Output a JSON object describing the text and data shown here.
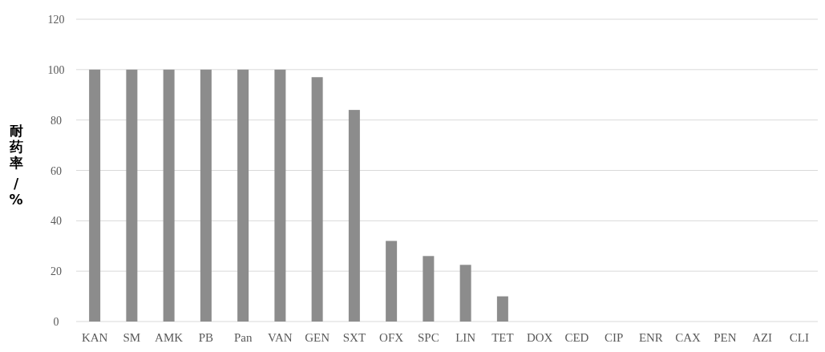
{
  "chart_data": {
    "type": "bar",
    "ylabel": "耐药率 /%",
    "categories": [
      "KAN",
      "SM",
      "AMK",
      "PB",
      "Pan",
      "VAN",
      "GEN",
      "SXT",
      "OFX",
      "SPC",
      "LIN",
      "TET",
      "DOX",
      "CED",
      "CIP",
      "ENR",
      "CAX",
      "PEN",
      "AZI",
      "CLI"
    ],
    "values": [
      100,
      100,
      100,
      100,
      100,
      100,
      97,
      84,
      32,
      26,
      22.5,
      10,
      0,
      0,
      0,
      0,
      0,
      0,
      0,
      0
    ],
    "color": "#8c8c8c",
    "ylim": [
      0,
      120
    ],
    "yticks": [
      0,
      20,
      40,
      60,
      80,
      100,
      120
    ],
    "grid": "y"
  }
}
